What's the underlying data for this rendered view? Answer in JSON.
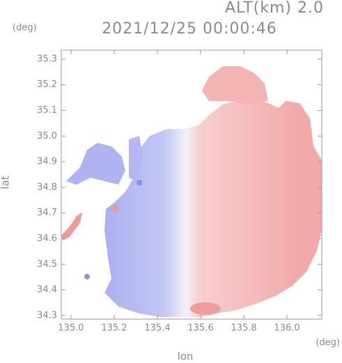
{
  "chart_data": {
    "type": "radar",
    "altitude": "ALT(km) 2.0",
    "title": "2021/12/25 00:00:46",
    "y_unit": "(deg)",
    "x_unit": "(deg)",
    "x_label": "lon",
    "y_label": "lat",
    "xlim": [
      134.955,
      136.161
    ],
    "ylim": [
      34.286,
      35.335
    ],
    "xticks": [
      {
        "value": 135,
        "label": "135.0"
      },
      135.2,
      135.4,
      135.6,
      135.8,
      {
        "value": 136,
        "label": "136.0"
      }
    ],
    "yticks": [
      34.3,
      34.4,
      34.5,
      34.6,
      34.7,
      34.8,
      34.9,
      {
        "value": 35,
        "label": "35.0"
      },
      35.1,
      35.2,
      35.3
    ]
  }
}
